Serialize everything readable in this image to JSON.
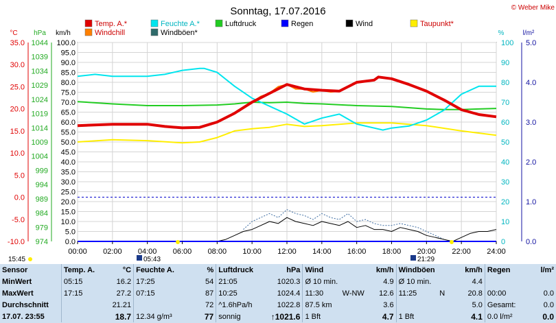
{
  "title": "Sonntag, 17.07.2016",
  "brand": "© Weber Mike",
  "legend": [
    {
      "label": "Temp. A.*",
      "color": "#e00000"
    },
    {
      "label": "Feuchte A.*",
      "color": "#00e5ee"
    },
    {
      "label": "Luftdruck",
      "color": "#22cc22"
    },
    {
      "label": "Regen",
      "color": "#0000ff"
    },
    {
      "label": "Wind",
      "color": "#000000"
    },
    {
      "label": "Taupunkt*",
      "color": "#ffee00"
    },
    {
      "label": "Windchill",
      "color": "#ff8000"
    },
    {
      "label": "Windböen*",
      "color": "#2f6b6b"
    }
  ],
  "units": {
    "temp": "°C",
    "pressure": "hPa",
    "wind": "km/h",
    "humidity": "%",
    "rain": "l/m²"
  },
  "markers": {
    "left_time": "15:45",
    "sunrise": "05:43",
    "sunset": "21:29"
  },
  "chart_data": {
    "type": "line",
    "x_ticks": [
      "00:00",
      "02:00",
      "04:00",
      "06:00",
      "08:00",
      "10:00",
      "12:00",
      "14:00",
      "16:00",
      "18:00",
      "20:00",
      "22:00",
      "24:00"
    ],
    "axes": {
      "temp": {
        "min": -10,
        "max": 35,
        "ticks": [
          "35.0",
          "30.0",
          "25.0",
          "20.0",
          "15.0",
          "10.0",
          "5.0",
          "0.0",
          "-5.0",
          "-10.0"
        ]
      },
      "pressure": {
        "min": 974,
        "max": 1044,
        "ticks": [
          "1044",
          "1039",
          "1034",
          "1029",
          "1024",
          "1019",
          "1014",
          "1009",
          "1004",
          "999",
          "994",
          "989",
          "984",
          "979",
          "974"
        ]
      },
      "wind": {
        "min": 0,
        "max": 100,
        "ticks": [
          "100.0",
          "95.0",
          "90.0",
          "85.0",
          "80.0",
          "75.0",
          "70.0",
          "65.0",
          "60.0",
          "55.0",
          "50.0",
          "45.0",
          "40.0",
          "35.0",
          "30.0",
          "25.0",
          "20.0",
          "15.0",
          "10.0",
          "5.0",
          "0.0"
        ]
      },
      "humidity": {
        "min": 0,
        "max": 100,
        "ticks": [
          "100",
          "90",
          "80",
          "70",
          "60",
          "50",
          "40",
          "30",
          "20",
          "10",
          "0"
        ]
      },
      "rain": {
        "min": 0,
        "max": 5,
        "ticks": [
          "5.0",
          "4.0",
          "3.0",
          "2.0",
          "1.0",
          "0.0"
        ]
      }
    },
    "series": [
      {
        "name": "Temp. A.*",
        "axis": "temp",
        "x": [
          0,
          2,
          4,
          5,
          6,
          7,
          8,
          9,
          10,
          11,
          12,
          13,
          14,
          15,
          16,
          17,
          17.25,
          18,
          19,
          20,
          21,
          22,
          23,
          24
        ],
        "y": [
          16.2,
          16.5,
          16.5,
          16.0,
          15.7,
          15.8,
          17.0,
          19.0,
          21.5,
          23.5,
          25.5,
          24.5,
          24.2,
          24.0,
          26.0,
          26.5,
          27.2,
          26.8,
          25.5,
          24.0,
          22.0,
          19.8,
          18.7,
          18.2
        ]
      },
      {
        "name": "Feuchte A.*",
        "axis": "humidity",
        "x": [
          0,
          1,
          2,
          3,
          4,
          5,
          6,
          7,
          7.25,
          8,
          9,
          10,
          11,
          12,
          13,
          14,
          15,
          16,
          17,
          17.5,
          18,
          19,
          20,
          21,
          22,
          23,
          24
        ],
        "y": [
          83,
          84,
          83,
          83,
          83,
          84,
          86,
          87,
          87,
          85,
          78,
          72,
          68,
          64,
          59,
          62,
          64,
          59,
          57,
          56,
          57,
          58,
          61,
          66,
          74,
          78,
          78
        ]
      },
      {
        "name": "Luftdruck",
        "axis": "pressure",
        "x": [
          0,
          2,
          4,
          6,
          8,
          9,
          10,
          11,
          12,
          13,
          14,
          16,
          18,
          20,
          21,
          22,
          23,
          24
        ],
        "y": [
          1023.2,
          1022.4,
          1021.8,
          1021.8,
          1022.0,
          1022.4,
          1023.0,
          1022.8,
          1023.0,
          1022.6,
          1022.4,
          1021.8,
          1021.5,
          1020.6,
          1020.4,
          1020.4,
          1020.6,
          1020.8
        ]
      },
      {
        "name": "Taupunkt*",
        "axis": "temp",
        "x": [
          0,
          2,
          4,
          6,
          7,
          8,
          9,
          10,
          11,
          12,
          13,
          14,
          16,
          18,
          20,
          22,
          24
        ],
        "y": [
          12.5,
          13.0,
          12.8,
          12.3,
          12.5,
          13.5,
          15.0,
          15.5,
          15.8,
          16.5,
          16.0,
          16.2,
          16.8,
          16.8,
          16.2,
          15.0,
          14.0
        ]
      },
      {
        "name": "Windchill",
        "axis": "temp",
        "x": [
          10,
          10.5,
          11,
          11.5,
          12,
          12.5,
          13,
          13.5,
          14,
          14.5,
          15
        ],
        "y": [
          21.5,
          22.8,
          23.5,
          25.0,
          25.5,
          24.5,
          24.5,
          23.8,
          24.2,
          23.8,
          24.0
        ]
      },
      {
        "name": "Wind",
        "axis": "wind",
        "x": [
          0,
          7,
          8,
          8.5,
          9,
          9.5,
          10,
          10.5,
          11,
          11.5,
          12,
          12.5,
          13,
          13.5,
          14,
          14.5,
          15,
          15.5,
          16,
          16.5,
          17,
          17.5,
          18,
          18.5,
          19,
          19.5,
          20,
          20.5,
          21,
          21.5,
          22,
          22.5,
          23,
          23.5,
          24
        ],
        "y": [
          0,
          0,
          0,
          1,
          3,
          5,
          6,
          8,
          10,
          9,
          12,
          10,
          9,
          8,
          10,
          9,
          8,
          10,
          7,
          8,
          6,
          6,
          5,
          7,
          6,
          5,
          3,
          2,
          1,
          0,
          2,
          4,
          5,
          5,
          6
        ]
      },
      {
        "name": "Windböen*",
        "axis": "wind",
        "x": [
          9.5,
          10,
          10.5,
          11,
          11.5,
          12,
          12.5,
          13,
          13.5,
          14,
          14.5,
          15,
          15.5,
          16,
          16.5,
          17,
          17.5,
          18,
          18.5,
          19,
          19.5,
          20,
          20.5,
          21
        ],
        "y": [
          6,
          10,
          12,
          14,
          12,
          16,
          14,
          13,
          11,
          14,
          12,
          11,
          14,
          10,
          11,
          9,
          8,
          8,
          9,
          8,
          7,
          5,
          3,
          1
        ]
      }
    ],
    "reference_lines": [
      {
        "axis": "temp",
        "value": 0,
        "color": "#0000cc",
        "style": "dashed"
      }
    ],
    "grid": true,
    "legend_position": "top"
  },
  "stats": {
    "headers": {
      "sensor": "Sensor",
      "temp": "Temp. A.",
      "temp_unit": "°C",
      "hum": "Feuchte A.",
      "hum_unit": "%",
      "press": "Luftdruck",
      "press_unit": "hPa",
      "wind": "Wind",
      "wind_unit": "km/h",
      "gust": "Windböen",
      "gust_unit": "km/h",
      "rain": "Regen",
      "rain_unit": "l/m²"
    },
    "rows": [
      {
        "label": "MinWert",
        "temp_time": "05:15",
        "temp": "16.2",
        "hum_time": "17:25",
        "hum": "54",
        "press_time": "21:05",
        "press": "1020.3",
        "wind_a": "Ø 10 min.",
        "wind_b": "",
        "wind_v": "4.9",
        "gust_a": "Ø 10 min.",
        "gust_b": "",
        "gust_v": "4.4",
        "rain_a": "",
        "rain_v": ""
      },
      {
        "label": "MaxWert",
        "temp_time": "17:15",
        "temp": "27.2",
        "hum_time": "07:15",
        "hum": "87",
        "press_time": "10:25",
        "press": "1024.4",
        "wind_a": "11:30",
        "wind_b": "W-NW",
        "wind_v": "12.6",
        "gust_a": "11:25",
        "gust_b": "N",
        "gust_v": "20.8",
        "rain_a": "00:00",
        "rain_v": "0.0"
      },
      {
        "label": "Durchschnitt",
        "temp_time": "",
        "temp": "21.21",
        "hum_time": "",
        "hum": "72",
        "press_time": "^1.6hPa/h",
        "press": "1022.8",
        "wind_a": "87.5 km",
        "wind_b": "",
        "wind_v": "3.6",
        "gust_a": "",
        "gust_b": "",
        "gust_v": "5.0",
        "rain_a": "Gesamt:",
        "rain_v": "0.0"
      },
      {
        "label": "17.07. 23:55",
        "temp_time": "",
        "temp": "18.7",
        "hum_time": "12.34 g/m³",
        "hum": "77",
        "press_time": "sonnig",
        "press": "↑1021.6",
        "wind_a": "1 Bft",
        "wind_b": "",
        "wind_v": "4.7",
        "gust_a": "1 Bft",
        "gust_b": "",
        "gust_v": "4.1",
        "rain_a": "0.0 l/m²",
        "rain_v": "0.0"
      }
    ]
  }
}
